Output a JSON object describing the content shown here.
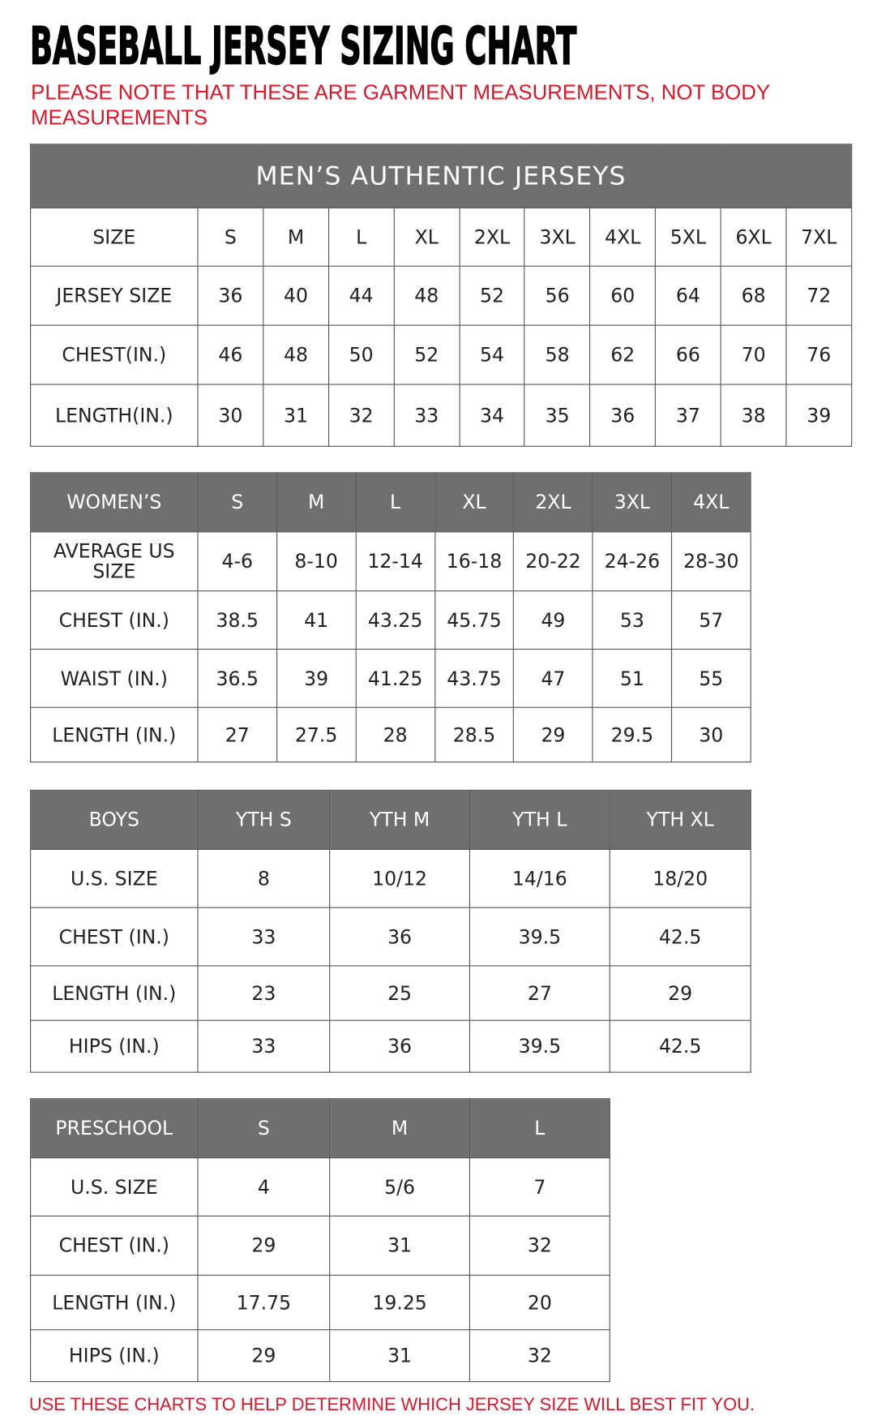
{
  "title": "BASEBALL JERSEY SIZING CHART",
  "note": "PLEASE NOTE THAT THESE ARE GARMENT MEASUREMENTS, NOT BODY MEASUREMENTS",
  "footer": "USE THESE CHARTS TO HELP DETERMINE WHICH JERSEY SIZE WILL BEST FIT YOU.",
  "colors": {
    "header_gray": "#6f6f6f",
    "note_red": "#d7182a"
  },
  "tables": [
    {
      "name": "mens",
      "title": "MEN’S AUTHENTIC JERSEYS",
      "header_gray": false,
      "header": [
        "SIZE",
        "S",
        "M",
        "L",
        "XL",
        "2XL",
        "3XL",
        "4XL",
        "5XL",
        "6XL",
        "7XL"
      ],
      "rows": [
        [
          "JERSEY SIZE",
          "36",
          "40",
          "44",
          "48",
          "52",
          "56",
          "60",
          "64",
          "68",
          "72"
        ],
        [
          "CHEST(IN.)",
          "46",
          "48",
          "50",
          "52",
          "54",
          "58",
          "62",
          "66",
          "70",
          "76"
        ],
        [
          "LENGTH(IN.)",
          "30",
          "31",
          "32",
          "33",
          "34",
          "35",
          "36",
          "37",
          "38",
          "39"
        ]
      ]
    },
    {
      "name": "womens",
      "header_gray": true,
      "header": [
        "WOMEN’S",
        "S",
        "M",
        "L",
        "XL",
        "2XL",
        "3XL",
        "4XL"
      ],
      "rows": [
        [
          "AVERAGE US SIZE",
          "4-6",
          "8-10",
          "12-14",
          "16-18",
          "20-22",
          "24-26",
          "28-30"
        ],
        [
          "CHEST (IN.)",
          "38.5",
          "41",
          "43.25",
          "45.75",
          "49",
          "53",
          "57"
        ],
        [
          "WAIST (IN.)",
          "36.5",
          "39",
          "41.25",
          "43.75",
          "47",
          "51",
          "55"
        ],
        [
          "LENGTH (IN.)",
          "27",
          "27.5",
          "28",
          "28.5",
          "29",
          "29.5",
          "30"
        ]
      ]
    },
    {
      "name": "boys",
      "header_gray": true,
      "header": [
        "BOYS",
        "YTH S",
        "YTH M",
        "YTH L",
        "YTH XL"
      ],
      "rows": [
        [
          "U.S. SIZE",
          "8",
          "10/12",
          "14/16",
          "18/20"
        ],
        [
          "CHEST (IN.)",
          "33",
          "36",
          "39.5",
          "42.5"
        ],
        [
          "LENGTH (IN.)",
          "23",
          "25",
          "27",
          "29"
        ],
        [
          "HIPS (IN.)",
          "33",
          "36",
          "39.5",
          "42.5"
        ]
      ]
    },
    {
      "name": "preschool",
      "header_gray": true,
      "header": [
        "PRESCHOOL",
        "S",
        "M",
        "L"
      ],
      "rows": [
        [
          "U.S. SIZE",
          "4",
          "5/6",
          "7"
        ],
        [
          "CHEST (IN.)",
          "29",
          "31",
          "32"
        ],
        [
          "LENGTH (IN.)",
          "17.75",
          "19.25",
          "20"
        ],
        [
          "HIPS (IN.)",
          "29",
          "31",
          "32"
        ]
      ]
    }
  ]
}
